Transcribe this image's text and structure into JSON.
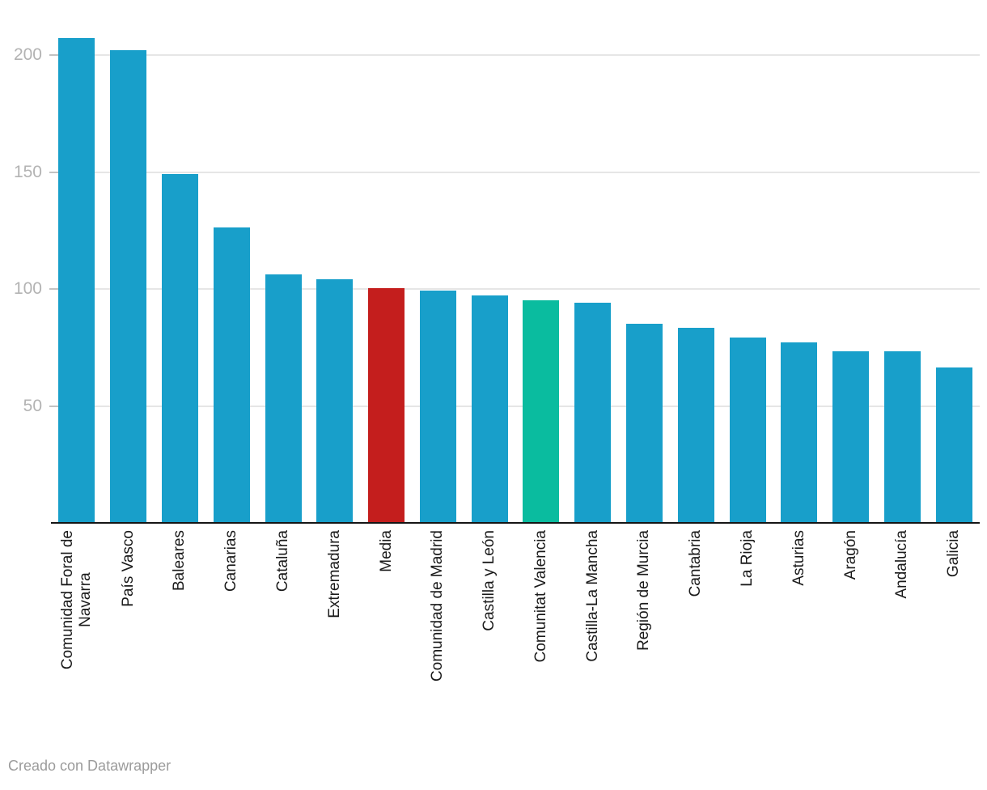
{
  "chart_data": {
    "type": "bar",
    "title": "",
    "xlabel": "",
    "ylabel": "",
    "yticks": [
      50,
      100,
      150,
      200
    ],
    "ylim": [
      0,
      210
    ],
    "grid": "horizontal",
    "legend": "none",
    "categories": [
      "Comunidad Foral de Navarra",
      "País Vasco",
      "Baleares",
      "Canarias",
      "Cataluña",
      "Extremadura",
      "Media",
      "Comunidad de Madrid",
      "Castilla y León",
      "Comunitat Valencia",
      "Castilla-La Mancha",
      "Región de Murcia",
      "Cantabria",
      "La Rioja",
      "Asturias",
      "Aragón",
      "Andalucía",
      "Galicia"
    ],
    "values": [
      207,
      202,
      149,
      126,
      106,
      104,
      100,
      99,
      97,
      95,
      94,
      85,
      83,
      79,
      77,
      73,
      73,
      66
    ],
    "bar_colors": [
      "#189fca",
      "#189fca",
      "#189fca",
      "#189fca",
      "#189fca",
      "#189fca",
      "#c41e1d",
      "#189fca",
      "#189fca",
      "#0abc9f",
      "#189fca",
      "#189fca",
      "#189fca",
      "#189fca",
      "#189fca",
      "#189fca",
      "#189fca",
      "#189fca"
    ],
    "two_line_label": {
      "index": 0,
      "lines": [
        "Comunidad Foral de",
        "Navarra"
      ]
    },
    "colors": {
      "bar_default": "#189fca",
      "bar_highlight_red": "#c41e1d",
      "bar_highlight_green": "#0abc9f",
      "gridline": "#e6e6e6",
      "axis_line": "#151515",
      "y_tick_label": "#b3b3b3",
      "category_label": "#1a1a1a"
    }
  },
  "footer": {
    "credit": "Creado con Datawrapper"
  }
}
